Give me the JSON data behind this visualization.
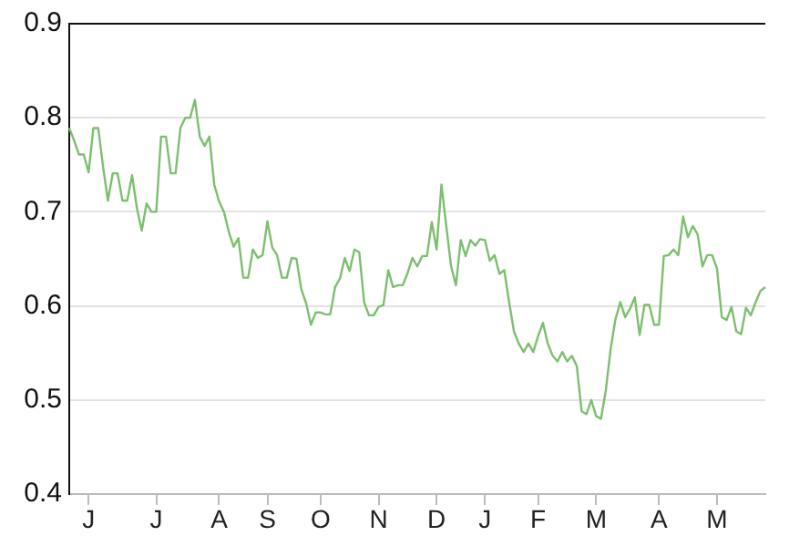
{
  "chart_data": {
    "type": "line",
    "ylim": [
      0.4,
      0.9
    ],
    "yticks": [
      0.4,
      0.5,
      0.6,
      0.7,
      0.8,
      0.9
    ],
    "grid": "y",
    "legend": false,
    "marker": "none",
    "line_style": "solid",
    "categories": [
      null,
      null,
      null,
      null,
      "J",
      null,
      null,
      null,
      null,
      null,
      null,
      null,
      null,
      null,
      null,
      null,
      null,
      null,
      "J",
      null,
      null,
      null,
      null,
      null,
      null,
      null,
      null,
      null,
      null,
      null,
      null,
      "A",
      null,
      null,
      null,
      null,
      null,
      null,
      null,
      null,
      null,
      "S",
      null,
      null,
      null,
      null,
      null,
      null,
      null,
      null,
      null,
      null,
      "O",
      null,
      null,
      null,
      null,
      null,
      null,
      null,
      null,
      null,
      null,
      null,
      "N",
      null,
      null,
      null,
      null,
      null,
      null,
      null,
      null,
      null,
      null,
      null,
      "D",
      null,
      null,
      null,
      null,
      null,
      null,
      null,
      null,
      null,
      "J",
      null,
      null,
      null,
      null,
      null,
      null,
      null,
      null,
      null,
      null,
      "F",
      null,
      null,
      null,
      null,
      null,
      null,
      null,
      null,
      null,
      null,
      null,
      "M",
      null,
      null,
      null,
      null,
      null,
      null,
      null,
      null,
      null,
      null,
      null,
      null,
      "A",
      null,
      null,
      null,
      null,
      null,
      null,
      null,
      null,
      null,
      null,
      null,
      "M",
      null,
      null,
      null,
      null,
      null,
      null,
      null,
      null,
      null,
      null
    ],
    "series": [
      {
        "color": "#7cbf6e",
        "values": [
          0.789,
          0.776,
          0.761,
          0.761,
          0.742,
          0.789,
          0.789,
          0.748,
          0.712,
          0.741,
          0.741,
          0.712,
          0.712,
          0.739,
          0.704,
          0.68,
          0.709,
          0.7,
          0.7,
          0.78,
          0.78,
          0.741,
          0.741,
          0.789,
          0.8,
          0.8,
          0.819,
          0.78,
          0.77,
          0.78,
          0.729,
          0.711,
          0.7,
          0.679,
          0.663,
          0.672,
          0.63,
          0.63,
          0.66,
          0.651,
          0.654,
          0.69,
          0.662,
          0.654,
          0.63,
          0.63,
          0.651,
          0.65,
          0.618,
          0.603,
          0.58,
          0.593,
          0.593,
          0.591,
          0.591,
          0.62,
          0.629,
          0.651,
          0.637,
          0.66,
          0.657,
          0.604,
          0.59,
          0.59,
          0.599,
          0.601,
          0.638,
          0.62,
          0.622,
          0.622,
          0.635,
          0.651,
          0.642,
          0.653,
          0.653,
          0.689,
          0.66,
          0.729,
          0.685,
          0.642,
          0.622,
          0.67,
          0.653,
          0.67,
          0.664,
          0.671,
          0.67,
          0.648,
          0.654,
          0.634,
          0.638,
          0.604,
          0.573,
          0.56,
          0.551,
          0.56,
          0.551,
          0.568,
          0.582,
          0.56,
          0.547,
          0.541,
          0.551,
          0.541,
          0.547,
          0.536,
          0.488,
          0.485,
          0.5,
          0.483,
          0.48,
          0.51,
          0.554,
          0.586,
          0.604,
          0.588,
          0.597,
          0.609,
          0.569,
          0.601,
          0.601,
          0.58,
          0.58,
          0.653,
          0.654,
          0.66,
          0.654,
          0.695,
          0.673,
          0.685,
          0.676,
          0.642,
          0.654,
          0.654,
          0.64,
          0.588,
          0.585,
          0.599,
          0.573,
          0.57,
          0.598,
          0.59,
          0.604,
          0.616,
          0.62
        ]
      }
    ]
  }
}
